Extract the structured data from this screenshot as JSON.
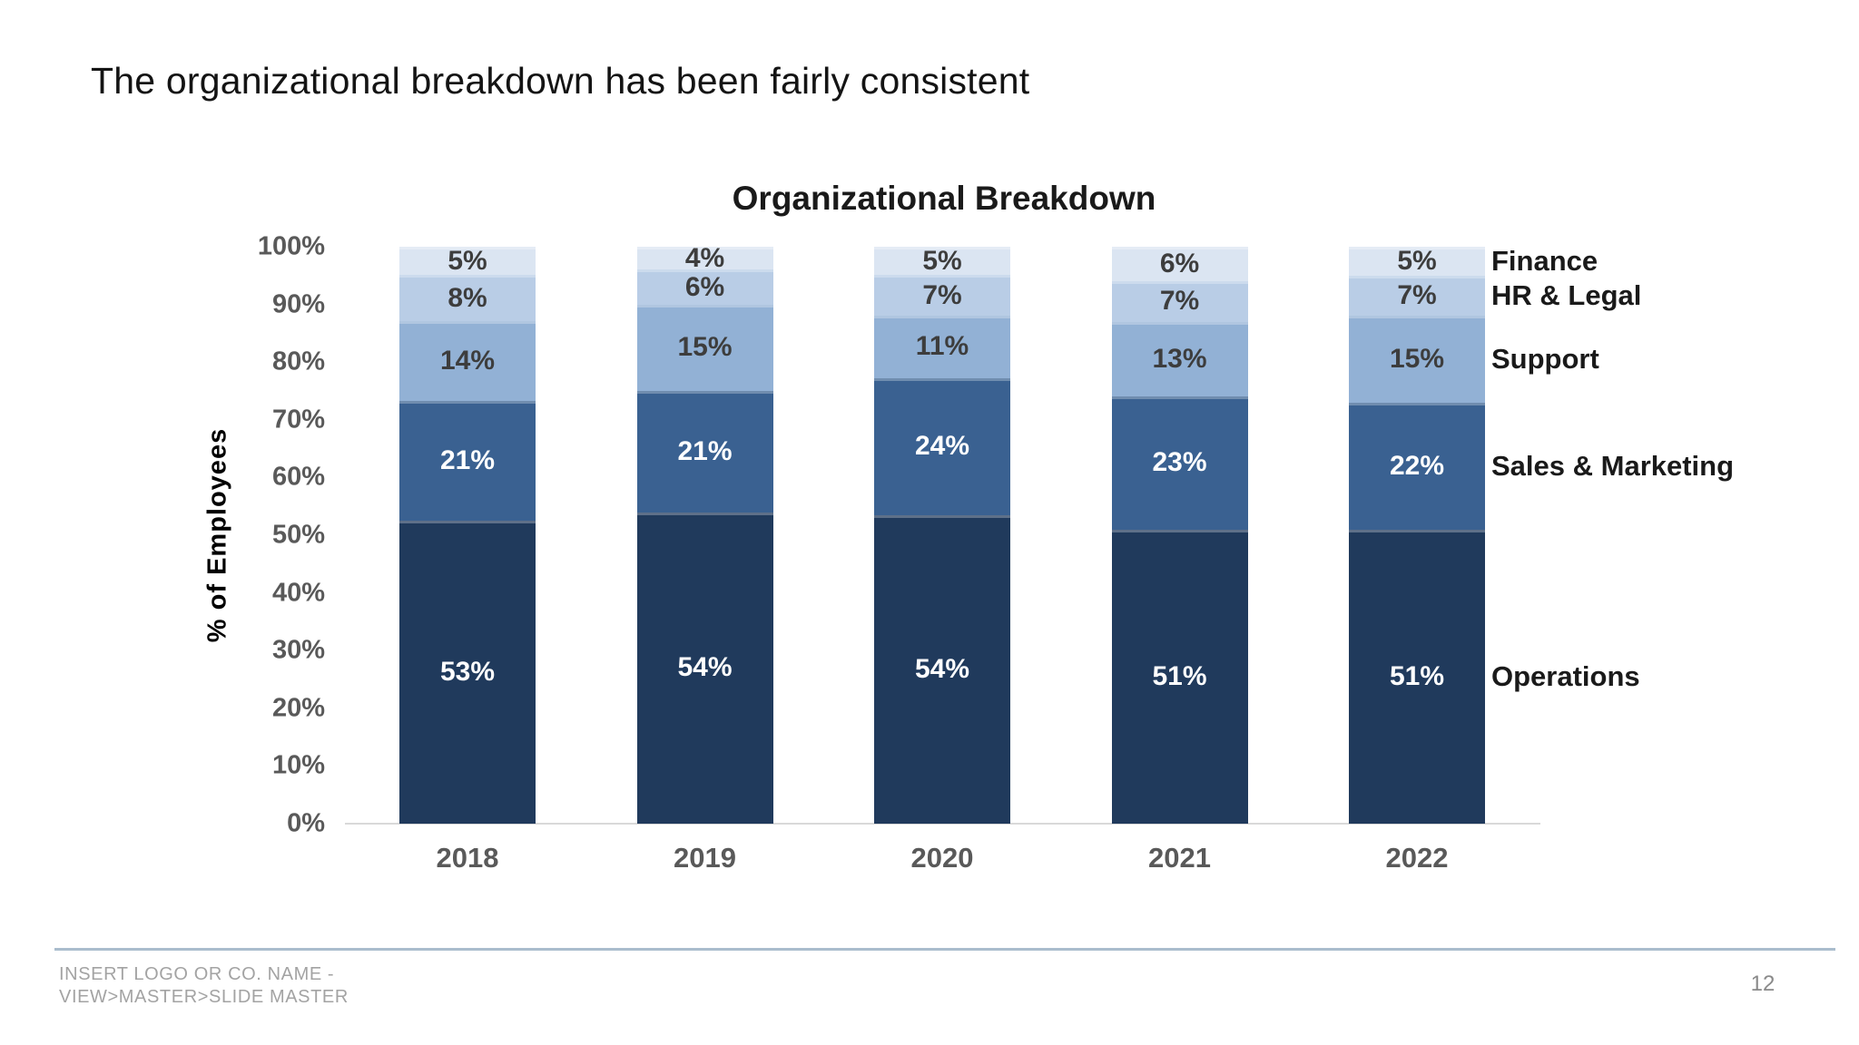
{
  "slide": {
    "title": "The organizational breakdown has been fairly consistent",
    "page_number": "12"
  },
  "footer": {
    "line1": "INSERT LOGO OR CO. NAME -",
    "line2": "VIEW>MASTER>SLIDE MASTER",
    "divider_color": "#aabdcd",
    "text_color": "#a3a3a3"
  },
  "chart_data": {
    "type": "bar",
    "variant": "stacked-100-percent",
    "title": "Organizational Breakdown",
    "xlabel": "",
    "ylabel": "% of Employees",
    "categories": [
      "2018",
      "2019",
      "2020",
      "2021",
      "2022"
    ],
    "series": [
      {
        "name": "Operations",
        "color": "#203a5c",
        "label_color": "#ffffff",
        "values": [
          53,
          54,
          54,
          51,
          51
        ]
      },
      {
        "name": "Sales & Marketing",
        "color": "#3a6191",
        "label_color": "#ffffff",
        "values": [
          21,
          21,
          24,
          23,
          22
        ]
      },
      {
        "name": "Support",
        "color": "#92b1d5",
        "label_color": "#3d3d3d",
        "values": [
          14,
          15,
          11,
          13,
          15
        ]
      },
      {
        "name": "HR & Legal",
        "color": "#b9cde6",
        "label_color": "#3d3d3d",
        "values": [
          8,
          6,
          7,
          7,
          7
        ]
      },
      {
        "name": "Finance",
        "color": "#dbe5f2",
        "label_color": "#3d3d3d",
        "values": [
          5,
          4,
          5,
          6,
          5
        ]
      }
    ],
    "value_suffix": "%",
    "ylim": [
      0,
      100
    ],
    "y_tick_step": 10,
    "y_tick_labels": [
      "0%",
      "10%",
      "20%",
      "30%",
      "40%",
      "50%",
      "60%",
      "70%",
      "80%",
      "90%",
      "100%"
    ],
    "grid": false,
    "legend_position": "right-of-last-bar",
    "axis_text_color": "#595959",
    "baseline_color": "#d9d9d9"
  }
}
